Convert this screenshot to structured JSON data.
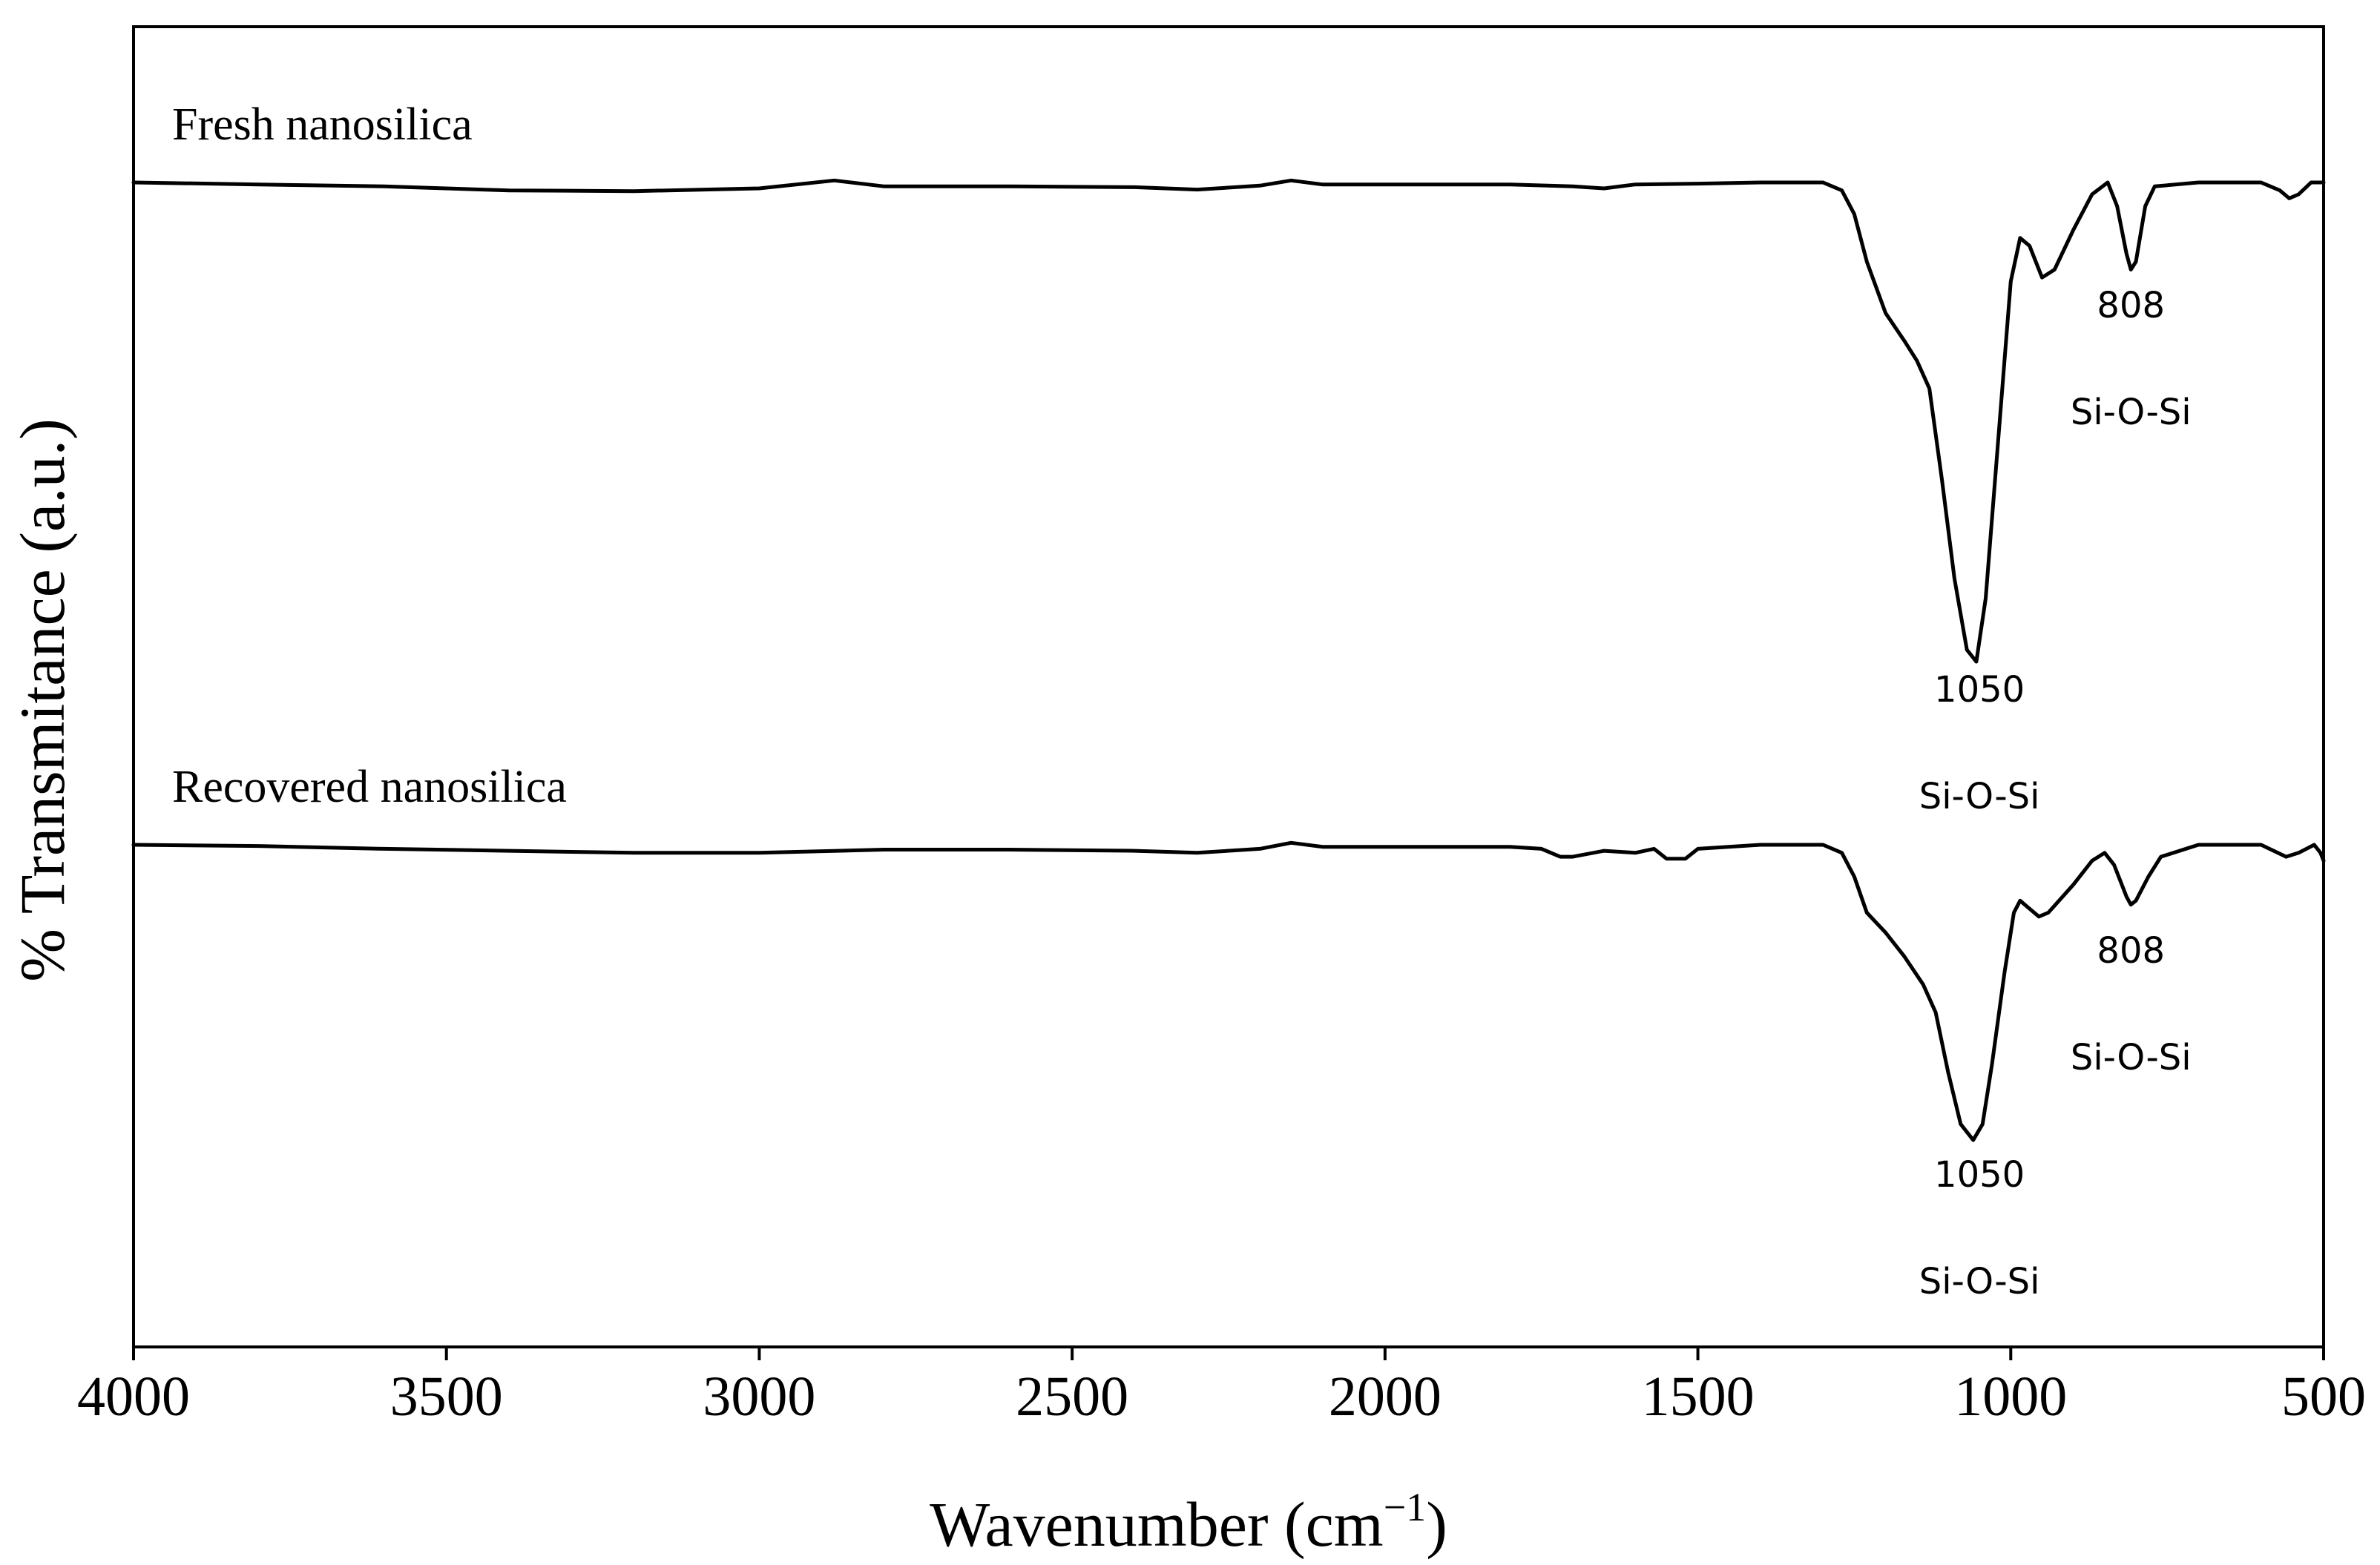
{
  "chart_data": {
    "type": "line",
    "title": "",
    "xlabel": "Wavenumber (cm",
    "xlabel_superscript": "−1",
    "xlabel_close": ")",
    "ylabel": "% Transmitance (a.u.)",
    "xlim": [
      4000,
      500
    ],
    "x_reversed": true,
    "x_ticks": [
      4000,
      3500,
      3000,
      2500,
      2000,
      1500,
      1000,
      500
    ],
    "grid": false,
    "legend": "none",
    "series": [
      {
        "name": "Fresh nanosilica",
        "offset_rank": 0,
        "points": [
          [
            4000,
            0
          ],
          [
            3800,
            -0.05
          ],
          [
            3600,
            -0.1
          ],
          [
            3400,
            -0.2
          ],
          [
            3200,
            -0.22
          ],
          [
            3000,
            -0.15
          ],
          [
            2880,
            0.05
          ],
          [
            2800,
            -0.1
          ],
          [
            2600,
            -0.1
          ],
          [
            2400,
            -0.12
          ],
          [
            2300,
            -0.18
          ],
          [
            2200,
            -0.08
          ],
          [
            2150,
            0.05
          ],
          [
            2100,
            -0.05
          ],
          [
            2000,
            -0.05
          ],
          [
            1900,
            -0.05
          ],
          [
            1800,
            -0.05
          ],
          [
            1700,
            -0.1
          ],
          [
            1650,
            -0.15
          ],
          [
            1600,
            -0.05
          ],
          [
            1500,
            -0.03
          ],
          [
            1400,
            0
          ],
          [
            1300,
            0
          ],
          [
            1270,
            -0.2
          ],
          [
            1250,
            -0.8
          ],
          [
            1230,
            -2.0
          ],
          [
            1200,
            -3.3
          ],
          [
            1170,
            -4.0
          ],
          [
            1150,
            -4.5
          ],
          [
            1130,
            -5.2
          ],
          [
            1110,
            -7.5
          ],
          [
            1090,
            -10.0
          ],
          [
            1070,
            -11.8
          ],
          [
            1055,
            -12.1
          ],
          [
            1040,
            -10.5
          ],
          [
            1020,
            -6.5
          ],
          [
            1000,
            -2.5
          ],
          [
            985,
            -1.4
          ],
          [
            970,
            -1.6
          ],
          [
            950,
            -2.4
          ],
          [
            930,
            -2.2
          ],
          [
            900,
            -1.2
          ],
          [
            870,
            -0.3
          ],
          [
            845,
            0
          ],
          [
            830,
            -0.6
          ],
          [
            815,
            -1.8
          ],
          [
            808,
            -2.2
          ],
          [
            800,
            -2.0
          ],
          [
            785,
            -0.6
          ],
          [
            770,
            -0.1
          ],
          [
            700,
            0
          ],
          [
            600,
            0
          ],
          [
            570,
            -0.2
          ],
          [
            555,
            -0.4
          ],
          [
            540,
            -0.3
          ],
          [
            520,
            0
          ],
          [
            500,
            0
          ]
        ]
      },
      {
        "name": "Recovered nanosilica",
        "offset_rank": 1,
        "points": [
          [
            4000,
            0
          ],
          [
            3800,
            -0.03
          ],
          [
            3600,
            -0.1
          ],
          [
            3400,
            -0.15
          ],
          [
            3200,
            -0.2
          ],
          [
            3000,
            -0.2
          ],
          [
            2800,
            -0.12
          ],
          [
            2600,
            -0.12
          ],
          [
            2400,
            -0.15
          ],
          [
            2300,
            -0.2
          ],
          [
            2200,
            -0.1
          ],
          [
            2150,
            0.05
          ],
          [
            2100,
            -0.05
          ],
          [
            2000,
            -0.05
          ],
          [
            1800,
            -0.05
          ],
          [
            1750,
            -0.1
          ],
          [
            1720,
            -0.3
          ],
          [
            1700,
            -0.3
          ],
          [
            1650,
            -0.15
          ],
          [
            1600,
            -0.2
          ],
          [
            1570,
            -0.1
          ],
          [
            1550,
            -0.35
          ],
          [
            1520,
            -0.35
          ],
          [
            1500,
            -0.1
          ],
          [
            1400,
            0
          ],
          [
            1300,
            0
          ],
          [
            1270,
            -0.2
          ],
          [
            1250,
            -0.8
          ],
          [
            1230,
            -1.7
          ],
          [
            1200,
            -2.2
          ],
          [
            1170,
            -2.8
          ],
          [
            1140,
            -3.5
          ],
          [
            1120,
            -4.2
          ],
          [
            1100,
            -5.7
          ],
          [
            1080,
            -7.0
          ],
          [
            1060,
            -7.4
          ],
          [
            1045,
            -7.0
          ],
          [
            1030,
            -5.5
          ],
          [
            1010,
            -3.2
          ],
          [
            995,
            -1.7
          ],
          [
            985,
            -1.4
          ],
          [
            970,
            -1.6
          ],
          [
            955,
            -1.8
          ],
          [
            940,
            -1.7
          ],
          [
            900,
            -1.0
          ],
          [
            870,
            -0.4
          ],
          [
            850,
            -0.2
          ],
          [
            835,
            -0.5
          ],
          [
            815,
            -1.3
          ],
          [
            808,
            -1.5
          ],
          [
            800,
            -1.4
          ],
          [
            780,
            -0.8
          ],
          [
            760,
            -0.3
          ],
          [
            700,
            0
          ],
          [
            600,
            0
          ],
          [
            560,
            -0.3
          ],
          [
            540,
            -0.2
          ],
          [
            515,
            0
          ],
          [
            505,
            -0.2
          ],
          [
            500,
            -0.4
          ]
        ]
      }
    ],
    "annotations": [
      {
        "series": 0,
        "x": 808,
        "lines": [
          "808",
          "Si-O-Si"
        ]
      },
      {
        "series": 0,
        "x": 1050,
        "lines": [
          "1050",
          "Si-O-Si"
        ]
      },
      {
        "series": 1,
        "x": 808,
        "lines": [
          "808",
          "Si-O-Si"
        ]
      },
      {
        "series": 1,
        "x": 1050,
        "lines": [
          "1050",
          "Si-O-Si"
        ]
      }
    ]
  }
}
